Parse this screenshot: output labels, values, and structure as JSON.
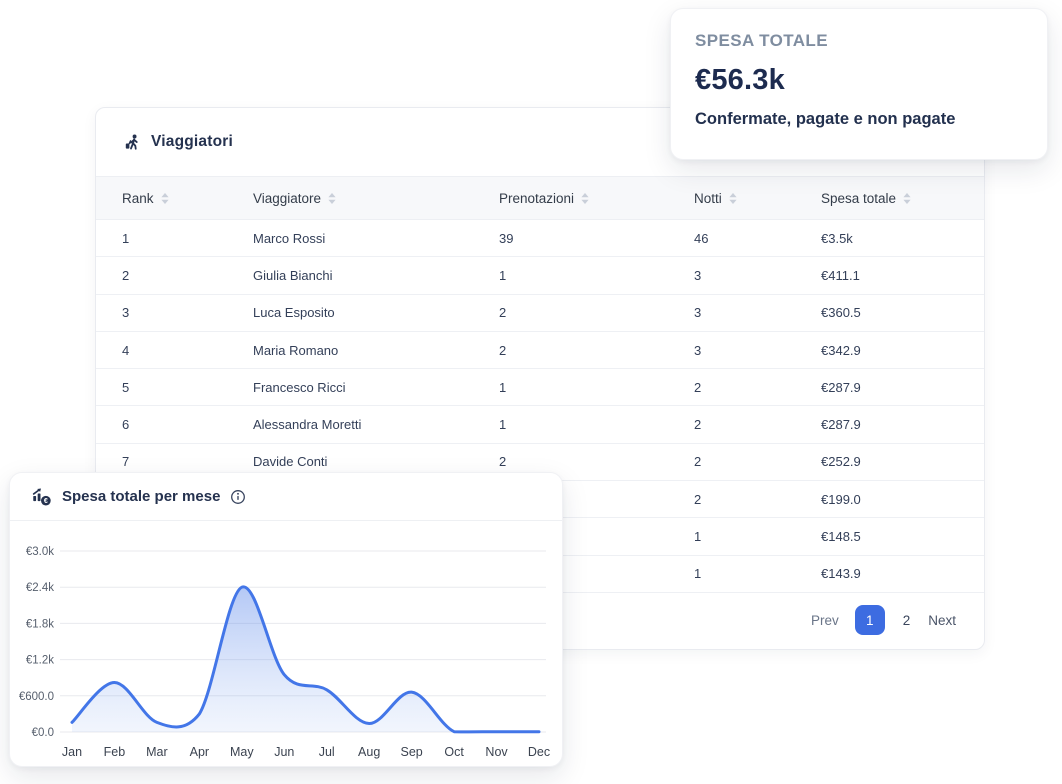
{
  "summary_card": {
    "label": "SPESA TOTALE",
    "value": "€56.3k",
    "subtitle": "Confermate, pagate e non pagate"
  },
  "table_card": {
    "title": "Viaggiatori",
    "columns": [
      "Rank",
      "Viaggiatore",
      "Prenotazioni",
      "Notti",
      "Spesa totale"
    ],
    "rows": [
      {
        "rank": "1",
        "traveler": "Marco Rossi",
        "bookings": "39",
        "nights": "46",
        "total": "€3.5k"
      },
      {
        "rank": "2",
        "traveler": "Giulia Bianchi",
        "bookings": "1",
        "nights": "3",
        "total": "€411.1"
      },
      {
        "rank": "3",
        "traveler": "Luca Esposito",
        "bookings": "2",
        "nights": "3",
        "total": "€360.5"
      },
      {
        "rank": "4",
        "traveler": "Maria Romano",
        "bookings": "2",
        "nights": "3",
        "total": "€342.9"
      },
      {
        "rank": "5",
        "traveler": "Francesco Ricci",
        "bookings": "1",
        "nights": "2",
        "total": "€287.9"
      },
      {
        "rank": "6",
        "traveler": "Alessandra Moretti",
        "bookings": "1",
        "nights": "2",
        "total": "€287.9"
      },
      {
        "rank": "7",
        "traveler": "Davide Conti",
        "bookings": "2",
        "nights": "2",
        "total": "€252.9"
      },
      {
        "rank": "",
        "traveler": "",
        "bookings": "",
        "nights": "2",
        "total": "€199.0"
      },
      {
        "rank": "",
        "traveler": "",
        "bookings": "",
        "nights": "1",
        "total": "€148.5"
      },
      {
        "rank": "",
        "traveler": "",
        "bookings": "",
        "nights": "1",
        "total": "€143.9"
      }
    ],
    "pagination": {
      "prev": "Prev",
      "page_1": "1",
      "page_2": "2",
      "next": "Next",
      "active_page": "1"
    }
  },
  "chart_card": {
    "title": "Spesa totale per mese",
    "coin_symbol": "€"
  },
  "chart_data": {
    "type": "area",
    "title": "Spesa totale per mese",
    "x": [
      "Jan",
      "Feb",
      "Mar",
      "Apr",
      "May",
      "Jun",
      "Jul",
      "Aug",
      "Sep",
      "Oct",
      "Nov",
      "Dec"
    ],
    "values": [
      160,
      820,
      160,
      300,
      2400,
      950,
      700,
      140,
      660,
      5,
      5,
      5
    ],
    "xlabel": "",
    "ylabel": "",
    "ylim": [
      0,
      3000
    ],
    "yticks": [
      "€0.0",
      "€600.0",
      "€1.2k",
      "€1.8k",
      "€2.4k",
      "€3.0k"
    ],
    "ytick_values": [
      0,
      600,
      1200,
      1800,
      2400,
      3000
    ],
    "grid": true,
    "legend": false,
    "line_color": "#4376e8",
    "fill_top": "#4c7ce9",
    "fill_bottom": "#8fb0f0",
    "grid_color": "#e8eaee"
  },
  "colors": {
    "accent_blue": "#3d6ce1",
    "navy_text": "#25324f",
    "muted_label": "#7f8da0"
  }
}
